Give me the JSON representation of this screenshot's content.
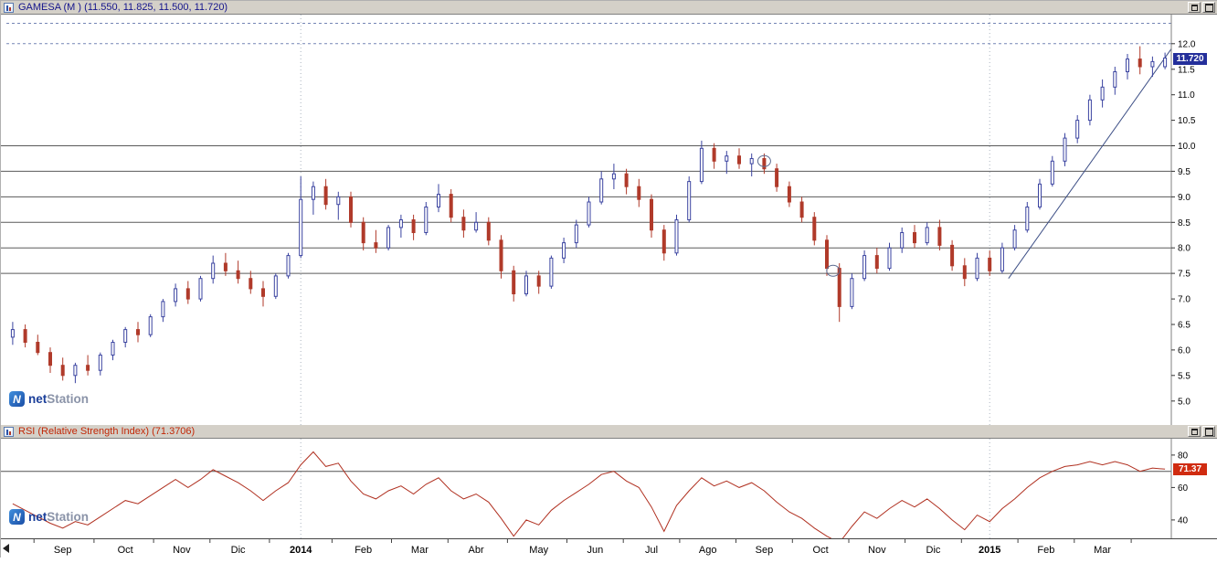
{
  "window": {
    "price_panel": {
      "title": "GAMESA (M ) (11.550, 11.825, 11.500, 11.720)",
      "price_label": "11.720"
    },
    "rsi_panel": {
      "title": "RSI (Relative Strength Index) (71.3706)",
      "value_label": "71.37"
    }
  },
  "branding": {
    "net": "net",
    "station": "Station"
  },
  "icons": {
    "panel_icon": "chart-icon",
    "logo_icon": "netstation-n-icon",
    "titlebar_buttons": [
      "restore-icon",
      "maximize-icon"
    ],
    "time_axis_scroll": "left-arrow-icon"
  },
  "chart_data": [
    {
      "type": "candlestick",
      "symbol": "GAMESA",
      "timeframe_label": "(M )",
      "ohlc_display": {
        "open": 11.55,
        "high": 11.825,
        "low": 11.5,
        "close": 11.72
      },
      "last_close": 11.72,
      "y_axis": {
        "min": 4.53,
        "max": 12.57,
        "ticks": [
          12.0,
          11.5,
          11.0,
          10.5,
          10.0,
          9.5,
          9.0,
          8.5,
          8.0,
          7.5,
          7.0,
          6.5,
          6.0,
          5.5,
          5.0
        ]
      },
      "x_axis": {
        "ticks": [
          {
            "index": 4,
            "label": "Sep"
          },
          {
            "index": 9,
            "label": "Oct"
          },
          {
            "index": 13.5,
            "label": "Nov"
          },
          {
            "index": 18,
            "label": "Dic"
          },
          {
            "index": 23,
            "label": "2014",
            "year": true
          },
          {
            "index": 28,
            "label": "Feb"
          },
          {
            "index": 32.5,
            "label": "Mar"
          },
          {
            "index": 37,
            "label": "Abr"
          },
          {
            "index": 42,
            "label": "May"
          },
          {
            "index": 46.5,
            "label": "Jun"
          },
          {
            "index": 51,
            "label": "Jul"
          },
          {
            "index": 55.5,
            "label": "Ago"
          },
          {
            "index": 60,
            "label": "Sep"
          },
          {
            "index": 64.5,
            "label": "Oct"
          },
          {
            "index": 69,
            "label": "Nov"
          },
          {
            "index": 73.5,
            "label": "Dic"
          },
          {
            "index": 78,
            "label": "2015",
            "year": true
          },
          {
            "index": 82.5,
            "label": "Feb"
          },
          {
            "index": 87,
            "label": "Mar"
          }
        ]
      },
      "h_lines_solid": [
        10.0,
        9.5,
        9.0,
        8.5,
        8.0,
        7.5
      ],
      "h_lines_dashed": [
        12.4,
        12.0
      ],
      "v_lines_dashed": [
        23,
        78
      ],
      "trend_line": {
        "from_index": 79.5,
        "from_value": 7.4,
        "to_index": 92.5,
        "to_value": 11.9
      },
      "circles": [
        {
          "index": 60,
          "value": 9.7
        },
        {
          "index": 65.5,
          "value": 7.55
        }
      ],
      "colors": {
        "up": "#3a43a0",
        "down": "#b03a2a"
      },
      "candles": [
        [
          6.25,
          6.55,
          6.1,
          6.4
        ],
        [
          6.4,
          6.5,
          6.05,
          6.15
        ],
        [
          6.15,
          6.3,
          5.9,
          5.95
        ],
        [
          5.95,
          6.05,
          5.55,
          5.7
        ],
        [
          5.7,
          5.85,
          5.4,
          5.5
        ],
        [
          5.5,
          5.75,
          5.35,
          5.7
        ],
        [
          5.7,
          5.9,
          5.5,
          5.6
        ],
        [
          5.6,
          5.95,
          5.5,
          5.9
        ],
        [
          5.9,
          6.2,
          5.8,
          6.15
        ],
        [
          6.15,
          6.45,
          6.05,
          6.4
        ],
        [
          6.4,
          6.55,
          6.15,
          6.3
        ],
        [
          6.3,
          6.7,
          6.25,
          6.65
        ],
        [
          6.65,
          7.0,
          6.55,
          6.95
        ],
        [
          6.95,
          7.3,
          6.85,
          7.2
        ],
        [
          7.2,
          7.35,
          6.9,
          7.0
        ],
        [
          7.0,
          7.45,
          6.95,
          7.4
        ],
        [
          7.4,
          7.85,
          7.3,
          7.7
        ],
        [
          7.7,
          7.9,
          7.45,
          7.55
        ],
        [
          7.55,
          7.75,
          7.3,
          7.4
        ],
        [
          7.4,
          7.55,
          7.1,
          7.2
        ],
        [
          7.2,
          7.35,
          6.85,
          7.05
        ],
        [
          7.05,
          7.5,
          7.0,
          7.45
        ],
        [
          7.45,
          7.9,
          7.4,
          7.85
        ],
        [
          7.85,
          9.4,
          7.8,
          8.95
        ],
        [
          8.95,
          9.3,
          8.65,
          9.2
        ],
        [
          9.2,
          9.35,
          8.75,
          8.85
        ],
        [
          8.85,
          9.1,
          8.55,
          9.0
        ],
        [
          9.0,
          9.1,
          8.4,
          8.5
        ],
        [
          8.5,
          8.6,
          7.95,
          8.1
        ],
        [
          8.1,
          8.35,
          7.9,
          8.0
        ],
        [
          8.0,
          8.45,
          7.95,
          8.4
        ],
        [
          8.4,
          8.65,
          8.2,
          8.55
        ],
        [
          8.55,
          8.65,
          8.15,
          8.3
        ],
        [
          8.3,
          8.9,
          8.25,
          8.8
        ],
        [
          8.8,
          9.25,
          8.7,
          9.05
        ],
        [
          9.05,
          9.15,
          8.5,
          8.6
        ],
        [
          8.6,
          8.75,
          8.2,
          8.35
        ],
        [
          8.35,
          8.7,
          8.3,
          8.5
        ],
        [
          8.5,
          8.6,
          8.05,
          8.15
        ],
        [
          8.15,
          8.25,
          7.4,
          7.55
        ],
        [
          7.55,
          7.65,
          6.95,
          7.1
        ],
        [
          7.1,
          7.55,
          7.05,
          7.45
        ],
        [
          7.45,
          7.55,
          7.1,
          7.25
        ],
        [
          7.25,
          7.85,
          7.2,
          7.8
        ],
        [
          7.8,
          8.2,
          7.7,
          8.1
        ],
        [
          8.1,
          8.55,
          8.0,
          8.45
        ],
        [
          8.45,
          9.0,
          8.4,
          8.9
        ],
        [
          8.9,
          9.5,
          8.85,
          9.35
        ],
        [
          9.35,
          9.65,
          9.15,
          9.45
        ],
        [
          9.45,
          9.55,
          9.05,
          9.2
        ],
        [
          9.2,
          9.35,
          8.8,
          8.95
        ],
        [
          8.95,
          9.05,
          8.2,
          8.35
        ],
        [
          8.35,
          8.45,
          7.75,
          7.9
        ],
        [
          7.9,
          8.65,
          7.85,
          8.55
        ],
        [
          8.55,
          9.4,
          8.5,
          9.3
        ],
        [
          9.3,
          10.1,
          9.25,
          9.95
        ],
        [
          9.95,
          10.05,
          9.55,
          9.7
        ],
        [
          9.7,
          9.9,
          9.45,
          9.8
        ],
        [
          9.8,
          9.95,
          9.55,
          9.65
        ],
        [
          9.65,
          9.85,
          9.4,
          9.75
        ],
        [
          9.75,
          9.85,
          9.45,
          9.55
        ],
        [
          9.55,
          9.65,
          9.1,
          9.2
        ],
        [
          9.2,
          9.3,
          8.8,
          8.9
        ],
        [
          8.9,
          9.0,
          8.5,
          8.6
        ],
        [
          8.6,
          8.7,
          8.05,
          8.15
        ],
        [
          8.15,
          8.25,
          7.45,
          7.6
        ],
        [
          7.6,
          7.7,
          6.55,
          6.85
        ],
        [
          6.85,
          7.5,
          6.8,
          7.4
        ],
        [
          7.4,
          7.95,
          7.35,
          7.85
        ],
        [
          7.85,
          8.0,
          7.5,
          7.6
        ],
        [
          7.6,
          8.1,
          7.55,
          8.0
        ],
        [
          8.0,
          8.4,
          7.9,
          8.3
        ],
        [
          8.3,
          8.45,
          8.0,
          8.1
        ],
        [
          8.1,
          8.5,
          8.05,
          8.4
        ],
        [
          8.4,
          8.55,
          7.95,
          8.05
        ],
        [
          8.05,
          8.15,
          7.55,
          7.65
        ],
        [
          7.65,
          7.8,
          7.25,
          7.4
        ],
        [
          7.4,
          7.9,
          7.35,
          7.8
        ],
        [
          7.8,
          7.95,
          7.45,
          7.55
        ],
        [
          7.55,
          8.1,
          7.5,
          8.0
        ],
        [
          8.0,
          8.45,
          7.95,
          8.35
        ],
        [
          8.35,
          8.9,
          8.3,
          8.8
        ],
        [
          8.8,
          9.35,
          8.75,
          9.25
        ],
        [
          9.25,
          9.8,
          9.2,
          9.7
        ],
        [
          9.7,
          10.25,
          9.6,
          10.15
        ],
        [
          10.15,
          10.6,
          10.05,
          10.5
        ],
        [
          10.5,
          11.0,
          10.4,
          10.9
        ],
        [
          10.9,
          11.3,
          10.75,
          11.15
        ],
        [
          11.15,
          11.55,
          11.0,
          11.45
        ],
        [
          11.45,
          11.8,
          11.3,
          11.7
        ],
        [
          11.7,
          11.95,
          11.4,
          11.55
        ],
        [
          11.55,
          11.75,
          11.35,
          11.65
        ],
        [
          11.55,
          11.825,
          11.5,
          11.72
        ]
      ]
    },
    {
      "type": "line",
      "indicator": "RSI (Relative Strength Index)",
      "last_value": 71.37,
      "color": "#b03020",
      "y_axis": {
        "min": 28.7,
        "max": 90.1,
        "ticks": [
          80,
          60,
          40
        ]
      },
      "h_lines_solid": [
        70
      ],
      "v_lines_dashed": [
        23,
        78
      ],
      "values": [
        50,
        46,
        42,
        38,
        35,
        39,
        37,
        42,
        47,
        52,
        50,
        55,
        60,
        65,
        60,
        65,
        71,
        67,
        63,
        58,
        52,
        58,
        63,
        74,
        82,
        73,
        75,
        64,
        56,
        53,
        58,
        61,
        56,
        62,
        66,
        58,
        53,
        56,
        51,
        41,
        30,
        40,
        37,
        46,
        52,
        57,
        62,
        68,
        70,
        64,
        60,
        48,
        33,
        49,
        58,
        66,
        61,
        64,
        60,
        63,
        58,
        51,
        45,
        41,
        35,
        30,
        26,
        36,
        45,
        41,
        47,
        52,
        48,
        53,
        47,
        40,
        34,
        43,
        39,
        47,
        53,
        60,
        66,
        70,
        73,
        74,
        76,
        74,
        76,
        74,
        70,
        72,
        71.37
      ]
    }
  ]
}
